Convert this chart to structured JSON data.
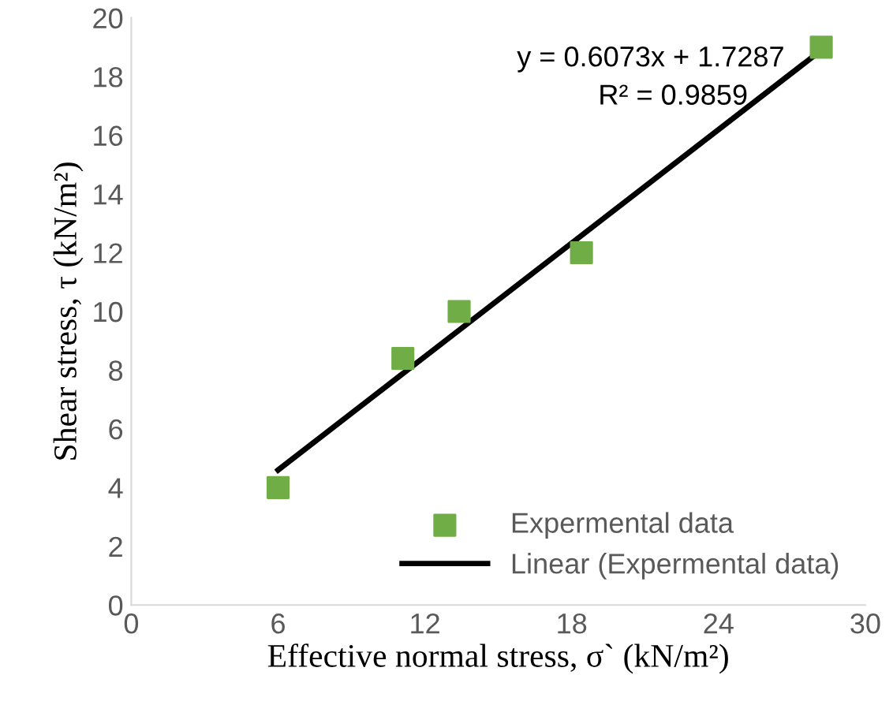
{
  "chart_data": {
    "type": "scatter",
    "xlabel": "Effective normal stress, σ` (kN/m²)",
    "ylabel": "Shear stress, τ (kN/m²)",
    "annotations": [
      "y = 0.6073x + 1.7287",
      "R² = 0.9859"
    ],
    "series": [
      {
        "name": "Expermental data",
        "color": "#70ad47",
        "marker": "square",
        "x": [
          6.0,
          11.1,
          13.4,
          18.4,
          28.2
        ],
        "values": [
          4.0,
          8.4,
          10.0,
          12.0,
          19.0
        ]
      },
      {
        "name": "Linear (Expermental data)",
        "type": "line",
        "color": "#000000",
        "marker": "none",
        "line_style": "solid",
        "x": [
          6.0,
          28.2
        ],
        "values": [
          4.6,
          18.9
        ]
      }
    ],
    "xlim": [
      0,
      30
    ],
    "xticks": [
      0,
      6,
      12,
      18,
      24,
      30
    ],
    "ylim": [
      0,
      20
    ],
    "yticks": [
      0,
      2,
      4,
      6,
      8,
      10,
      12,
      14,
      16,
      18,
      20
    ],
    "grid": false,
    "legend": "bottom right"
  }
}
